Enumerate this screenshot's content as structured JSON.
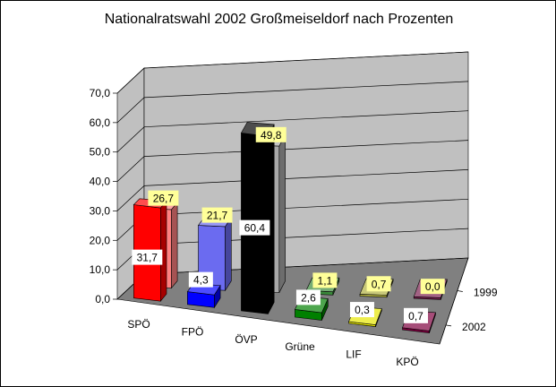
{
  "chart_data": {
    "type": "bar",
    "title": "Nationalratswahl 2002 Großmeiseldorf nach Prozenten",
    "categories": [
      "SPÖ",
      "FPÖ",
      "ÖVP",
      "Grüne",
      "LIF",
      "KPÖ"
    ],
    "series": [
      {
        "name": "1999",
        "values": [
          26.7,
          21.7,
          49.8,
          1.1,
          0.7,
          0.0
        ],
        "labels": [
          "26,7",
          "21,7",
          "49,8",
          "1,1",
          "0,7",
          "0,0"
        ],
        "colors": [
          "#ff8080",
          "#6b6bf0",
          "#a8a8a8",
          "#3a8a3a",
          "#b0b040",
          "#7a1f4f"
        ]
      },
      {
        "name": "2002",
        "values": [
          31.7,
          4.3,
          60.4,
          2.6,
          0.3,
          0.7
        ],
        "labels": [
          "31,7",
          "4,3",
          "60,4",
          "2,6",
          "0,3",
          "0,7"
        ],
        "colors": [
          "#ff0000",
          "#0000ff",
          "#000000",
          "#008000",
          "#e6e600",
          "#800040"
        ]
      }
    ],
    "ylim": [
      0,
      70
    ],
    "yticks": [
      "0,0",
      "10,0",
      "20,0",
      "30,0",
      "40,0",
      "50,0",
      "60,0",
      "70,0"
    ],
    "grid": true,
    "legend": "right (depth axis labels)"
  }
}
